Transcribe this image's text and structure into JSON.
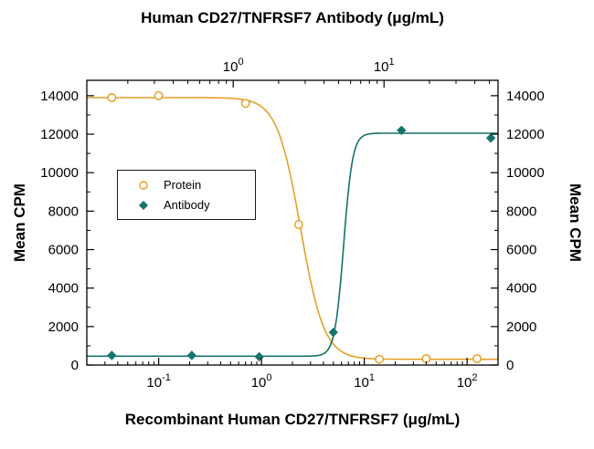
{
  "chart_data": {
    "type": "line",
    "subtype": "dose-response-scatter-with-fit",
    "title_top": "Human CD27/TNFRSF7 Antibody (μg/mL)",
    "xlabel": "Recombinant Human CD27/TNFRSF7 (μg/mL)",
    "ylabel_left": "Mean CPM",
    "ylabel_right": "Mean CPM",
    "grid": false,
    "legend_position": "upper-left-inside",
    "background_color": "#ffffff",
    "axis_color": "#000000",
    "y_axis": {
      "min": 0,
      "max": 14800,
      "ticks": [
        0,
        2000,
        4000,
        6000,
        8000,
        10000,
        12000,
        14000
      ],
      "minor_step": 1000
    },
    "x_axis_bottom": {
      "scale": "log",
      "min": 0.02,
      "max": 200,
      "ticks": [
        0.1,
        1,
        10,
        100
      ]
    },
    "x_axis_top": {
      "scale": "log",
      "min": 0.107,
      "max": 57,
      "ticks": [
        1,
        10
      ]
    },
    "series": [
      {
        "name": "Protein",
        "marker": "open-circle",
        "color": "#E3A128",
        "x": [
          0.035,
          0.1,
          0.7,
          2.3,
          14,
          40,
          125
        ],
        "y": [
          13900,
          14000,
          13600,
          7300,
          300,
          330,
          330
        ],
        "fit": {
          "type": "4PL",
          "top": 13900,
          "bottom": 300,
          "ec50": 2.4,
          "hill": 3.8,
          "direction": "decreasing"
        }
      },
      {
        "name": "Antibody",
        "marker": "filled-diamond",
        "color": "#15736B",
        "x": [
          0.035,
          0.21,
          0.95,
          5,
          23,
          170
        ],
        "y": [
          500,
          500,
          430,
          1700,
          12200,
          11800
        ],
        "fit": {
          "type": "4PL",
          "top": 12050,
          "bottom": 460,
          "ec50": 6.3,
          "hill": 10,
          "direction": "increasing"
        }
      }
    ]
  }
}
